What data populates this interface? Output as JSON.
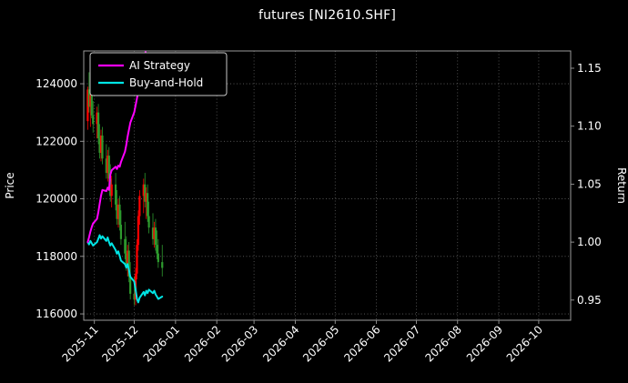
{
  "title": "futures [NI2610.SHF]",
  "legend": [
    {
      "label": "AI Strategy",
      "color": "#ff00ff"
    },
    {
      "label": "Buy-and-Hold",
      "color": "#00e5e5"
    }
  ],
  "colors": {
    "background": "#000000",
    "text": "#ffffff",
    "tick_text": "#e8e8e8",
    "grid": "#5f5f5f",
    "spine": "#9a9a9a",
    "candle_up": "#ff0000",
    "candle_down": "#2e9b2e",
    "ai_strategy": "#ff00ff",
    "buy_and_hold": "#00e5e5"
  },
  "chart_data": {
    "type": "candlestick+line",
    "title": "futures [NI2610.SHF]",
    "grid": true,
    "legend_position": "upper left",
    "x_axis": {
      "range": [
        "2025-10-24",
        "2026-10-25"
      ],
      "tick_labels": [
        "2025-11",
        "2025-12",
        "2026-01",
        "2026-02",
        "2026-03",
        "2026-04",
        "2026-05",
        "2026-06",
        "2026-07",
        "2026-08",
        "2026-09",
        "2026-10"
      ]
    },
    "price_axis": {
      "label": "Price",
      "range": [
        115780,
        125140
      ],
      "ticks": [
        116000,
        118000,
        120000,
        122000,
        124000
      ]
    },
    "return_axis": {
      "label": "Return",
      "range": [
        0.9326,
        1.1649
      ],
      "ticks": [
        0.95,
        1.0,
        1.05,
        1.1,
        1.15
      ]
    },
    "candles": {
      "columns": [
        "date",
        "open",
        "high",
        "low",
        "close"
      ],
      "rows": [
        [
          "2025-10-27",
          122700,
          123900,
          122400,
          123800
        ],
        [
          "2025-10-28",
          123800,
          124400,
          123000,
          123200
        ],
        [
          "2025-10-29",
          123200,
          123800,
          122500,
          123600
        ],
        [
          "2025-10-30",
          123600,
          124100,
          122800,
          122900
        ],
        [
          "2025-10-31",
          122900,
          123400,
          122300,
          122600
        ],
        [
          "2025-11-03",
          122600,
          123200,
          122100,
          123000
        ],
        [
          "2025-11-04",
          123000,
          123300,
          121900,
          122100
        ],
        [
          "2025-11-05",
          122100,
          122600,
          121400,
          121600
        ],
        [
          "2025-11-06",
          121600,
          122400,
          121300,
          122200
        ],
        [
          "2025-11-07",
          122200,
          122500,
          121200,
          121400
        ],
        [
          "2025-11-10",
          121400,
          121900,
          120700,
          120900
        ],
        [
          "2025-11-11",
          120900,
          121700,
          120600,
          121500
        ],
        [
          "2025-11-12",
          121500,
          121800,
          120500,
          120700
        ],
        [
          "2025-11-13",
          120700,
          121200,
          119900,
          120100
        ],
        [
          "2025-11-14",
          120100,
          120800,
          119700,
          120500
        ],
        [
          "2025-11-17",
          120500,
          120900,
          119600,
          119800
        ],
        [
          "2025-11-18",
          119800,
          120300,
          119100,
          119300
        ],
        [
          "2025-11-19",
          119300,
          120000,
          119000,
          119800
        ],
        [
          "2025-11-20",
          119800,
          120100,
          118900,
          119100
        ],
        [
          "2025-11-21",
          119100,
          119600,
          118400,
          118600
        ],
        [
          "2025-11-24",
          118600,
          119200,
          117900,
          118100
        ],
        [
          "2025-11-25",
          118100,
          118700,
          117500,
          117700
        ],
        [
          "2025-11-26",
          117700,
          118400,
          117300,
          118200
        ],
        [
          "2025-11-27",
          118200,
          118500,
          117100,
          117300
        ],
        [
          "2025-11-28",
          117300,
          117800,
          116500,
          116700
        ],
        [
          "2025-12-01",
          116700,
          117300,
          116300,
          116500
        ],
        [
          "2025-12-02",
          116500,
          117600,
          116300,
          117400
        ],
        [
          "2025-12-03",
          117400,
          118600,
          117200,
          118400
        ],
        [
          "2025-12-04",
          118400,
          119600,
          118200,
          119400
        ],
        [
          "2025-12-05",
          119400,
          120300,
          119100,
          120100
        ],
        [
          "2025-12-08",
          120100,
          120700,
          119500,
          120500
        ],
        [
          "2025-12-09",
          120500,
          120900,
          119700,
          119900
        ],
        [
          "2025-12-10",
          119900,
          120400,
          119300,
          120200
        ],
        [
          "2025-12-11",
          120200,
          120500,
          119200,
          119400
        ],
        [
          "2025-12-12",
          119400,
          119900,
          118800,
          119000
        ],
        [
          "2025-12-15",
          119000,
          119500,
          118400,
          118600
        ],
        [
          "2025-12-16",
          118600,
          119200,
          118300,
          119000
        ],
        [
          "2025-12-17",
          119000,
          119300,
          118200,
          118400
        ],
        [
          "2025-12-18",
          118400,
          118900,
          117900,
          118100
        ],
        [
          "2025-12-19",
          118100,
          118600,
          117600,
          117800
        ],
        [
          "2025-12-22",
          117800,
          118400,
          117300,
          117600
        ]
      ]
    },
    "series": [
      {
        "name": "AI Strategy",
        "axis": "return",
        "color": "#ff00ff",
        "points": [
          [
            "2025-10-27",
            1.0
          ],
          [
            "2025-10-28",
            1.004
          ],
          [
            "2025-10-29",
            1.009
          ],
          [
            "2025-10-30",
            1.013
          ],
          [
            "2025-10-31",
            1.016
          ],
          [
            "2025-11-03",
            1.02
          ],
          [
            "2025-11-04",
            1.026
          ],
          [
            "2025-11-05",
            1.033
          ],
          [
            "2025-11-06",
            1.04
          ],
          [
            "2025-11-07",
            1.045
          ],
          [
            "2025-11-10",
            1.044
          ],
          [
            "2025-11-11",
            1.047
          ],
          [
            "2025-11-12",
            1.045
          ],
          [
            "2025-11-13",
            1.058
          ],
          [
            "2025-11-14",
            1.062
          ],
          [
            "2025-11-17",
            1.065
          ],
          [
            "2025-11-18",
            1.063
          ],
          [
            "2025-11-19",
            1.066
          ],
          [
            "2025-11-20",
            1.065
          ],
          [
            "2025-11-21",
            1.069
          ],
          [
            "2025-11-24",
            1.078
          ],
          [
            "2025-11-25",
            1.084
          ],
          [
            "2025-11-26",
            1.091
          ],
          [
            "2025-11-27",
            1.097
          ],
          [
            "2025-11-28",
            1.103
          ],
          [
            "2025-12-01",
            1.112
          ],
          [
            "2025-12-02",
            1.118
          ],
          [
            "2025-12-03",
            1.124
          ],
          [
            "2025-12-04",
            1.13
          ],
          [
            "2025-12-05",
            1.136
          ],
          [
            "2025-12-08",
            1.148
          ],
          [
            "2025-12-09",
            1.159
          ],
          [
            "2025-12-10",
            1.17
          ]
        ]
      },
      {
        "name": "Buy-and-Hold",
        "axis": "return",
        "color": "#00e5e5",
        "points": [
          [
            "2025-10-27",
            1.0
          ],
          [
            "2025-10-28",
            0.998
          ],
          [
            "2025-10-29",
            1.001
          ],
          [
            "2025-10-30",
            0.999
          ],
          [
            "2025-10-31",
            0.997
          ],
          [
            "2025-11-03",
            1.0
          ],
          [
            "2025-11-04",
            1.003
          ],
          [
            "2025-11-05",
            1.006
          ],
          [
            "2025-11-06",
            1.003
          ],
          [
            "2025-11-07",
            1.005
          ],
          [
            "2025-11-10",
            1.001
          ],
          [
            "2025-11-11",
            1.004
          ],
          [
            "2025-11-12",
            1.0
          ],
          [
            "2025-11-13",
            0.997
          ],
          [
            "2025-11-14",
            0.999
          ],
          [
            "2025-11-17",
            0.993
          ],
          [
            "2025-11-18",
            0.99
          ],
          [
            "2025-11-19",
            0.992
          ],
          [
            "2025-11-20",
            0.988
          ],
          [
            "2025-11-21",
            0.984
          ],
          [
            "2025-11-24",
            0.981
          ],
          [
            "2025-11-25",
            0.978
          ],
          [
            "2025-11-26",
            0.981
          ],
          [
            "2025-11-27",
            0.976
          ],
          [
            "2025-11-28",
            0.97
          ],
          [
            "2025-12-01",
            0.966
          ],
          [
            "2025-12-02",
            0.959
          ],
          [
            "2025-12-03",
            0.951
          ],
          [
            "2025-12-04",
            0.948
          ],
          [
            "2025-12-05",
            0.952
          ],
          [
            "2025-12-08",
            0.957
          ],
          [
            "2025-12-09",
            0.954
          ],
          [
            "2025-12-10",
            0.958
          ],
          [
            "2025-12-11",
            0.956
          ],
          [
            "2025-12-12",
            0.959
          ],
          [
            "2025-12-15",
            0.956
          ],
          [
            "2025-12-16",
            0.958
          ],
          [
            "2025-12-17",
            0.955
          ],
          [
            "2025-12-18",
            0.953
          ],
          [
            "2025-12-19",
            0.951
          ],
          [
            "2025-12-22",
            0.953
          ]
        ]
      }
    ]
  }
}
